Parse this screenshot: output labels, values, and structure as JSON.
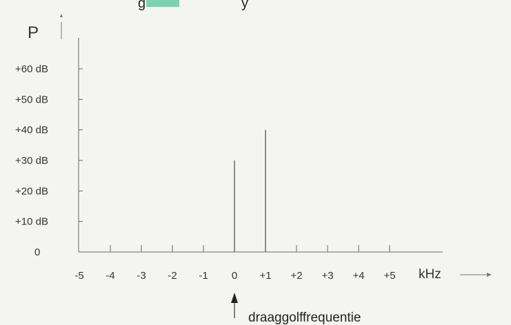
{
  "header_fragments": {
    "left": "g",
    "right": "y",
    "marker_color": "#7fd1ad"
  },
  "chart_data": {
    "type": "bar",
    "title": "",
    "ylabel": "P",
    "xlabel": "kHz",
    "annotation": "draaggolffrequentie",
    "xlim": [
      -5,
      5
    ],
    "ylim": [
      0,
      60
    ],
    "x_ticks": [
      {
        "value": -5,
        "label": "-5"
      },
      {
        "value": -4,
        "label": "-4"
      },
      {
        "value": -3,
        "label": "-3"
      },
      {
        "value": -2,
        "label": "-2"
      },
      {
        "value": -1,
        "label": "-1"
      },
      {
        "value": 0,
        "label": "0"
      },
      {
        "value": 1,
        "label": "+1"
      },
      {
        "value": 2,
        "label": "+2"
      },
      {
        "value": 3,
        "label": "+3"
      },
      {
        "value": 4,
        "label": "+4"
      },
      {
        "value": 5,
        "label": "+5"
      }
    ],
    "y_ticks": [
      {
        "value": 0,
        "label": "0"
      },
      {
        "value": 10,
        "label": "+10 dB"
      },
      {
        "value": 20,
        "label": "+20 dB"
      },
      {
        "value": 30,
        "label": "+30 dB"
      },
      {
        "value": 40,
        "label": "+40 dB"
      },
      {
        "value": 50,
        "label": "+50 dB"
      },
      {
        "value": 60,
        "label": "+60 dB"
      }
    ],
    "x": [
      0,
      1
    ],
    "values": [
      30,
      40
    ],
    "line_color": "#555555",
    "axis_color": "#666666"
  }
}
